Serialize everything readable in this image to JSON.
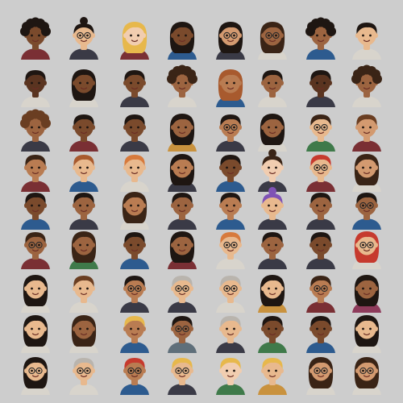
{
  "palette": {
    "background": "#cdcdcd",
    "skin": [
      "#5a3420",
      "#7a4a2c",
      "#9c6440",
      "#b97c52",
      "#d39a70",
      "#e8b98e",
      "#f1cdb0"
    ],
    "hair": [
      "#1e1612",
      "#3a2416",
      "#6a3e22",
      "#a85a2e",
      "#d77a3c",
      "#e7b84c",
      "#ededea",
      "#b9b4ad",
      "#7f52b5",
      "#c63a2e"
    ],
    "shirt": [
      "#7a2f34",
      "#2d5b8f",
      "#3f7a4a",
      "#d8d4cc",
      "#c9923e",
      "#3a3a46",
      "#8e3b5b",
      "#5f6f7a"
    ]
  },
  "avatars": [
    {
      "skin": 1,
      "hair": 0,
      "style": "curly",
      "shirt": 0,
      "glasses": false
    },
    {
      "skin": 5,
      "hair": 0,
      "style": "bun",
      "shirt": 5,
      "glasses": true
    },
    {
      "skin": 6,
      "hair": 5,
      "style": "long",
      "shirt": 0,
      "glasses": false
    },
    {
      "skin": 1,
      "hair": 0,
      "style": "long",
      "shirt": 1,
      "glasses": false
    },
    {
      "skin": 4,
      "hair": 0,
      "style": "long",
      "shirt": 5,
      "glasses": true
    },
    {
      "skin": 2,
      "hair": 1,
      "style": "long",
      "shirt": 3,
      "glasses": true
    },
    {
      "skin": 2,
      "hair": 0,
      "style": "curly",
      "shirt": 1,
      "glasses": false
    },
    {
      "skin": 5,
      "hair": 0,
      "style": "short",
      "shirt": 3,
      "glasses": false
    },
    {
      "skin": 0,
      "hair": 0,
      "style": "short",
      "shirt": 3,
      "glasses": false
    },
    {
      "skin": 1,
      "hair": 0,
      "style": "long",
      "shirt": 3,
      "glasses": false
    },
    {
      "skin": 1,
      "hair": 0,
      "style": "short",
      "shirt": 5,
      "glasses": false
    },
    {
      "skin": 2,
      "hair": 1,
      "style": "curly",
      "shirt": 3,
      "glasses": false
    },
    {
      "skin": 3,
      "hair": 3,
      "style": "long",
      "shirt": 1,
      "glasses": false
    },
    {
      "skin": 2,
      "hair": 0,
      "style": "short",
      "shirt": 3,
      "glasses": false
    },
    {
      "skin": 0,
      "hair": 0,
      "style": "short",
      "shirt": 5,
      "glasses": false
    },
    {
      "skin": 2,
      "hair": 1,
      "style": "curly",
      "shirt": 3,
      "glasses": false
    },
    {
      "skin": 2,
      "hair": 2,
      "style": "curly",
      "shirt": 5,
      "glasses": false
    },
    {
      "skin": 1,
      "hair": 0,
      "style": "short",
      "shirt": 0,
      "glasses": false
    },
    {
      "skin": 1,
      "hair": 0,
      "style": "short",
      "shirt": 5,
      "glasses": false
    },
    {
      "skin": 2,
      "hair": 0,
      "style": "long",
      "shirt": 4,
      "glasses": false
    },
    {
      "skin": 3,
      "hair": 0,
      "style": "short",
      "shirt": 5,
      "glasses": true
    },
    {
      "skin": 2,
      "hair": 0,
      "style": "long",
      "shirt": 3,
      "glasses": false
    },
    {
      "skin": 5,
      "hair": 1,
      "style": "short",
      "shirt": 2,
      "glasses": true
    },
    {
      "skin": 4,
      "hair": 2,
      "style": "short",
      "shirt": 0,
      "glasses": false
    },
    {
      "skin": 3,
      "hair": 1,
      "style": "short",
      "shirt": 0,
      "glasses": false
    },
    {
      "skin": 5,
      "hair": 3,
      "style": "short",
      "shirt": 1,
      "glasses": false
    },
    {
      "skin": 5,
      "hair": 4,
      "style": "short",
      "shirt": 3,
      "glasses": false
    },
    {
      "skin": 3,
      "hair": 0,
      "style": "long",
      "shirt": 5,
      "glasses": false
    },
    {
      "skin": 1,
      "hair": 0,
      "style": "short",
      "shirt": 1,
      "glasses": false
    },
    {
      "skin": 6,
      "hair": 1,
      "style": "bun",
      "shirt": 5,
      "glasses": false
    },
    {
      "skin": 5,
      "hair": 9,
      "style": "short",
      "shirt": 0,
      "glasses": true
    },
    {
      "skin": 4,
      "hair": 1,
      "style": "long",
      "shirt": 3,
      "glasses": false
    },
    {
      "skin": 1,
      "hair": 0,
      "style": "short",
      "shirt": 1,
      "glasses": false
    },
    {
      "skin": 2,
      "hair": 0,
      "style": "short",
      "shirt": 5,
      "glasses": false
    },
    {
      "skin": 3,
      "hair": 1,
      "style": "long",
      "shirt": 3,
      "glasses": false
    },
    {
      "skin": 2,
      "hair": 0,
      "style": "short",
      "shirt": 5,
      "glasses": false
    },
    {
      "skin": 3,
      "hair": 0,
      "style": "short",
      "shirt": 1,
      "glasses": false
    },
    {
      "skin": 5,
      "hair": 8,
      "style": "bun",
      "shirt": 5,
      "glasses": false
    },
    {
      "skin": 2,
      "hair": 0,
      "style": "short",
      "shirt": 5,
      "glasses": false
    },
    {
      "skin": 2,
      "hair": 0,
      "style": "short",
      "shirt": 1,
      "glasses": true
    },
    {
      "skin": 2,
      "hair": 1,
      "style": "short",
      "shirt": 0,
      "glasses": true
    },
    {
      "skin": 2,
      "hair": 1,
      "style": "long",
      "shirt": 2,
      "glasses": false
    },
    {
      "skin": 1,
      "hair": 0,
      "style": "short",
      "shirt": 1,
      "glasses": false
    },
    {
      "skin": 2,
      "hair": 0,
      "style": "long",
      "shirt": 0,
      "glasses": false
    },
    {
      "skin": 5,
      "hair": 4,
      "style": "short",
      "shirt": 3,
      "glasses": true
    },
    {
      "skin": 2,
      "hair": 0,
      "style": "short",
      "shirt": 5,
      "glasses": false
    },
    {
      "skin": 1,
      "hair": 0,
      "style": "short",
      "shirt": 5,
      "glasses": false
    },
    {
      "skin": 5,
      "hair": 9,
      "style": "long",
      "shirt": 3,
      "glasses": true
    },
    {
      "skin": 5,
      "hair": 0,
      "style": "long",
      "shirt": 3,
      "glasses": false
    },
    {
      "skin": 5,
      "hair": 2,
      "style": "short",
      "shirt": 3,
      "glasses": false
    },
    {
      "skin": 3,
      "hair": 0,
      "style": "short",
      "shirt": 5,
      "glasses": true
    },
    {
      "skin": 5,
      "hair": 7,
      "style": "short",
      "shirt": 5,
      "glasses": true
    },
    {
      "skin": 5,
      "hair": 7,
      "style": "short",
      "shirt": 3,
      "glasses": true
    },
    {
      "skin": 5,
      "hair": 0,
      "style": "long",
      "shirt": 4,
      "glasses": false
    },
    {
      "skin": 3,
      "hair": 1,
      "style": "short",
      "shirt": 0,
      "glasses": true
    },
    {
      "skin": 2,
      "hair": 0,
      "style": "long",
      "shirt": 6,
      "glasses": false
    },
    {
      "skin": 5,
      "hair": 0,
      "style": "long",
      "shirt": 3,
      "glasses": false
    },
    {
      "skin": 2,
      "hair": 1,
      "style": "long",
      "shirt": 3,
      "glasses": false
    },
    {
      "skin": 3,
      "hair": 5,
      "style": "short",
      "shirt": 1,
      "glasses": false
    },
    {
      "skin": 2,
      "hair": 0,
      "style": "short",
      "shirt": 7,
      "glasses": true
    },
    {
      "skin": 5,
      "hair": 7,
      "style": "short",
      "shirt": 5,
      "glasses": false
    },
    {
      "skin": 1,
      "hair": 0,
      "style": "short",
      "shirt": 2,
      "glasses": false
    },
    {
      "skin": 1,
      "hair": 0,
      "style": "short",
      "shirt": 1,
      "glasses": false
    },
    {
      "skin": 5,
      "hair": 0,
      "style": "long",
      "shirt": 3,
      "glasses": false
    },
    {
      "skin": 5,
      "hair": 0,
      "style": "long",
      "shirt": 3,
      "glasses": true
    },
    {
      "skin": 5,
      "hair": 7,
      "style": "short",
      "shirt": 3,
      "glasses": true
    },
    {
      "skin": 3,
      "hair": 9,
      "style": "short",
      "shirt": 1,
      "glasses": true
    },
    {
      "skin": 5,
      "hair": 5,
      "style": "short",
      "shirt": 5,
      "glasses": true
    },
    {
      "skin": 6,
      "hair": 5,
      "style": "short",
      "shirt": 2,
      "glasses": false
    },
    {
      "skin": 5,
      "hair": 5,
      "style": "short",
      "shirt": 4,
      "glasses": false
    },
    {
      "skin": 4,
      "hair": 1,
      "style": "long",
      "shirt": 3,
      "glasses": true
    },
    {
      "skin": 4,
      "hair": 1,
      "style": "long",
      "shirt": 3,
      "glasses": true
    }
  ]
}
